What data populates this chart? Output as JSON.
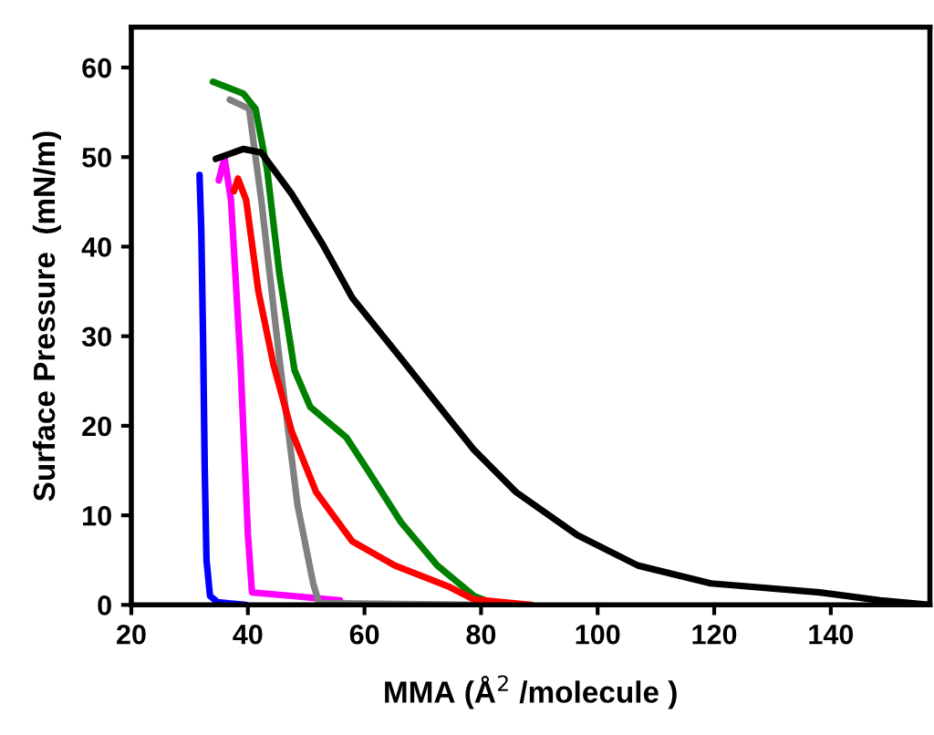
{
  "chart_data": {
    "type": "line",
    "xlabel": "MMA (Å$^{2}$ /molecule )",
    "ylabel": "Surface Pressure  (mN/m)",
    "xlim": [
      20,
      157
    ],
    "ylim": [
      0,
      64.5
    ],
    "xticks": [
      20,
      40,
      60,
      80,
      100,
      120,
      140
    ],
    "yticks": [
      0,
      10,
      20,
      30,
      40,
      50,
      60
    ],
    "grid": false,
    "marker": "none",
    "line_style": "solid",
    "series": [
      {
        "color": "#0000ff",
        "x": [
          31.7,
          32.0,
          32.3,
          32.6,
          32.9,
          33.5,
          34.8,
          39.7
        ],
        "values": [
          48,
          42,
          30,
          15,
          5,
          1,
          0.3,
          0
        ]
      },
      {
        "color": "#ff00ff",
        "x": [
          35.0,
          36.0,
          37.1,
          38.7,
          40.0,
          40.7,
          47.5,
          55.8
        ],
        "values": [
          47.4,
          49.9,
          45.2,
          27.5,
          7.9,
          1.4,
          1,
          0.5
        ]
      },
      {
        "color": "#808080",
        "x": [
          36.9,
          40.2,
          42.3,
          45.4,
          48.5,
          51.2,
          52.2,
          80.9
        ],
        "values": [
          56.4,
          55.4,
          45.2,
          27.5,
          11.2,
          2.4,
          0.2,
          0
        ]
      },
      {
        "color": "#008000",
        "x": [
          34.0,
          39.2,
          41.3,
          43.3,
          45.4,
          48.0,
          50.7,
          56.9,
          61.0,
          66.3,
          72.5,
          78.8,
          82.8
        ],
        "values": [
          58.4,
          57.1,
          55.4,
          48.6,
          37,
          26.2,
          22.1,
          18.7,
          14.6,
          9.2,
          4.4,
          1.0,
          0
        ]
      },
      {
        "color": "#ff0000",
        "x": [
          37.6,
          38.3,
          39.7,
          41.8,
          44.4,
          47.5,
          51.7,
          57.9,
          65.2,
          74.6,
          78.8,
          88.6
        ],
        "values": [
          46.2,
          47.6,
          45.2,
          35,
          26.8,
          19.4,
          12.6,
          7.1,
          4.4,
          2.0,
          0.6,
          0
        ]
      },
      {
        "color": "#000000",
        "x": [
          34.5,
          39.2,
          42.3,
          47.5,
          52.7,
          57.9,
          66.3,
          74.6,
          78.8,
          86.0,
          96.5,
          106.9,
          119.4,
          138.1,
          148.5,
          157.0
        ],
        "values": [
          49.8,
          50.9,
          50.5,
          45.9,
          40.4,
          34.3,
          27.5,
          20.7,
          17.3,
          12.6,
          7.8,
          4.4,
          2.4,
          1.4,
          0.5,
          0
        ]
      }
    ]
  }
}
